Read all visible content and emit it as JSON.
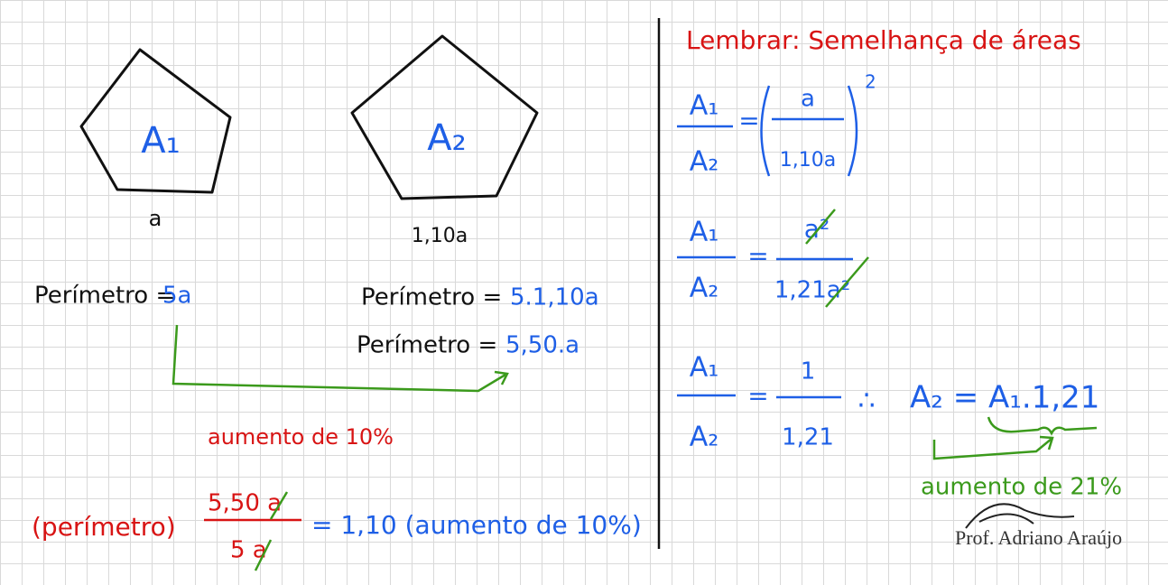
{
  "left": {
    "pentagon_1": {
      "label": "A₁",
      "side": "a"
    },
    "pentagon_2": {
      "label": "A₂",
      "side": "1,10a"
    },
    "perimeter_1": {
      "label": "Perímetro =",
      "value": "5a"
    },
    "perimeter_2": {
      "label": "Perímetro =",
      "value": "5.1,10a"
    },
    "perimeter_3": {
      "label": "Perímetro =",
      "value": "5,50.a"
    },
    "increase_note": "aumento de 10%",
    "ratio": {
      "label": "(perímetro)",
      "numerator": "5,50 a",
      "denominator": "5 a",
      "result": "= 1,10 (aumento de 10%)"
    }
  },
  "right": {
    "title": "Lembrar: Semelhança de áreas",
    "eq1": {
      "lhs_num": "A₁",
      "lhs_den": "A₂",
      "eq": "=",
      "rhs_num": "a",
      "rhs_den": "1,10a",
      "exponent": "2"
    },
    "eq2": {
      "lhs_num": "A₁",
      "lhs_den": "A₂",
      "eq": "=",
      "rhs_num": "a²",
      "rhs_den": "1,21a²"
    },
    "eq3": {
      "lhs_num": "A₁",
      "lhs_den": "A₂",
      "eq": "=",
      "rhs_num": "1",
      "rhs_den": "1,21",
      "therefore": "∴",
      "result": "A₂ = A₁.1,21"
    },
    "increase_note": "aumento de 21%"
  },
  "signature": "Prof. Adriano Araújo"
}
